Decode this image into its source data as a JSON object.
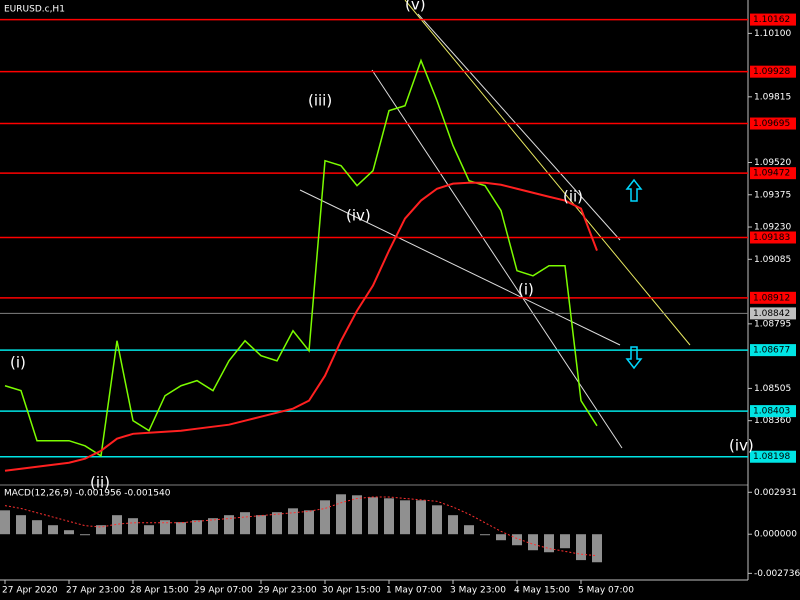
{
  "chart_data": [
    {
      "type": "line",
      "title": "EURUSD.c,H1",
      "categories": [
        "27 Apr 2020",
        null,
        null,
        null,
        "27 Apr 23:00",
        null,
        null,
        null,
        "28 Apr 15:00",
        null,
        null,
        null,
        "29 Apr 07:00",
        null,
        null,
        null,
        "29 Apr 23:00",
        null,
        null,
        null,
        "30 Apr 15:00",
        null,
        null,
        null,
        "1 May 07:00",
        null,
        null,
        null,
        "3 May 23:00",
        null,
        null,
        null,
        "4 May 15:00",
        null,
        null,
        null,
        "5 May 07:00",
        null
      ],
      "series": [
        {
          "name": "Close",
          "color": "#7cfc00",
          "values": [
            1.08517,
            1.08495,
            1.0827,
            1.0827,
            1.0827,
            1.08247,
            1.08202,
            1.08719,
            1.0836,
            1.08315,
            1.08472,
            1.08517,
            1.0854,
            1.08495,
            1.08629,
            1.08719,
            1.08652,
            1.08629,
            1.08764,
            1.08674,
            1.09528,
            1.09506,
            1.09416,
            1.09483,
            1.09753,
            1.09775,
            1.09978,
            1.09798,
            1.09596,
            1.09438,
            1.09416,
            1.09304,
            1.09034,
            1.09011,
            1.09056,
            1.09056,
            1.0845,
            1.08337
          ]
        },
        {
          "name": "MA",
          "color": "#ff2020",
          "values": [
            1.08135,
            1.08144,
            1.08153,
            1.08162,
            1.08171,
            1.08189,
            1.08225,
            1.08279,
            1.08301,
            1.08306,
            1.0831,
            1.08315,
            1.08324,
            1.08333,
            1.08342,
            1.0836,
            1.08378,
            1.08396,
            1.08414,
            1.0845,
            1.08562,
            1.08719,
            1.08854,
            1.08967,
            1.09124,
            1.09268,
            1.09349,
            1.09402,
            1.09425,
            1.09429,
            1.09429,
            1.0942,
            1.09402,
            1.09384,
            1.09366,
            1.09349,
            1.09313,
            1.09124
          ]
        }
      ],
      "ylim": [
        1.0808,
        1.1025
      ],
      "yticks": [
        {
          "value": 1.101,
          "label": "1.10100"
        },
        1.09815,
        {
          "value": 1.0952,
          "label": "1.09520"
        },
        1.09375,
        {
          "value": 1.0923,
          "label": "1.09230"
        },
        1.09085,
        1.08795,
        1.08505,
        {
          "value": 1.0836,
          "label": "1.08360"
        }
      ],
      "levels": [
        {
          "value": 1.10162,
          "color": "#ff0000"
        },
        {
          "value": 1.09928,
          "color": "#ff0000"
        },
        {
          "value": 1.09695,
          "color": "#ff0000"
        },
        {
          "value": 1.09472,
          "color": "#ff0000"
        },
        {
          "value": 1.09183,
          "color": "#ff0000"
        },
        {
          "value": 1.08912,
          "color": "#ff0000"
        },
        {
          "value": 1.08677,
          "color": "#00e5e5"
        },
        {
          "value": 1.08403,
          "color": "#00e5e5"
        },
        {
          "value": 1.08198,
          "color": "#00e5e5"
        }
      ],
      "current_price": 1.08842,
      "annotations": [
        "(i)",
        "(ii)",
        "(iii)",
        "(iv)",
        "(v)",
        "(i)",
        "(ii)",
        "(iv)"
      ]
    },
    {
      "type": "bar",
      "title": "MACD(12,26,9) -0.001956 -0.001540",
      "series": [
        {
          "name": "MACD",
          "color": "#c0c0c0",
          "values": [
            0.00167,
            0.00133,
            0.00098,
            0.00063,
            0.00028,
            -7e-05,
            0.00063,
            0.00133,
            0.00112,
            0.00063,
            0.00098,
            0.00084,
            0.00098,
            0.00112,
            0.00133,
            0.00154,
            0.00133,
            0.00154,
            0.00181,
            0.00167,
            0.00237,
            0.00279,
            0.00272,
            0.00258,
            0.00251,
            0.00237,
            0.00237,
            0.00202,
            0.00133,
            0.00063,
            -7e-05,
            -0.00042,
            -0.00077,
            -0.00112,
            -0.00126,
            -0.00098,
            -0.00181,
            -0.00196
          ]
        },
        {
          "name": "Signal",
          "color": "#ff3030",
          "values": [
            0.002,
            0.0018,
            0.0015,
            0.0012,
            0.0009,
            0.0006,
            0.0005,
            0.0007,
            0.0008,
            0.0008,
            0.0008,
            0.0008,
            0.0009,
            0.001,
            0.0011,
            0.0012,
            0.0013,
            0.0014,
            0.0015,
            0.0016,
            0.0018,
            0.0022,
            0.0025,
            0.0026,
            0.0026,
            0.0025,
            0.0024,
            0.0023,
            0.0019,
            0.0014,
            0.0008,
            0.0002,
            -0.0003,
            -0.0007,
            -0.001,
            -0.0012,
            -0.0014,
            -0.0015
          ]
        }
      ],
      "ylim": [
        -0.0032,
        0.0033
      ],
      "yticks": [
        0.002931,
        {
          "value": 0,
          "label": "0.000000"
        },
        -0.002736
      ]
    }
  ]
}
